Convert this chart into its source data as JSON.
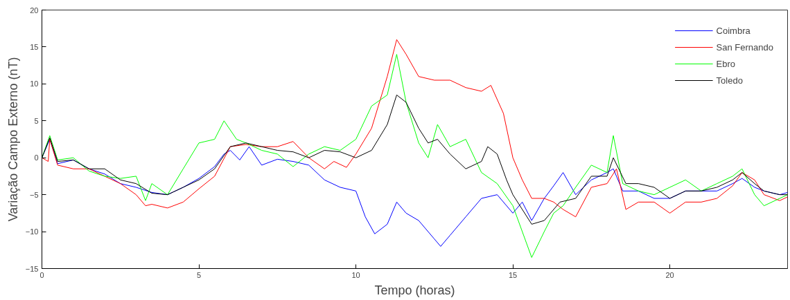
{
  "chart_data": {
    "type": "line",
    "xlabel": "Tempo (horas)",
    "ylabel": "Variação Campo Externo (nT)",
    "xlim": [
      0,
      23.75
    ],
    "ylim": [
      -15,
      20
    ],
    "xticks": [
      0,
      5,
      10,
      15,
      20
    ],
    "yticks": [
      -15,
      -10,
      -5,
      0,
      5,
      10,
      15,
      20
    ],
    "grid": false,
    "legend": "top right",
    "marker": "none",
    "line_style": "solid",
    "series": [
      {
        "name": "Coimbra",
        "color": "#0000ff",
        "x": [
          0,
          0.25,
          0.5,
          1,
          1.5,
          2,
          2.5,
          3,
          3.5,
          4,
          4.5,
          5,
          5.5,
          5.8,
          6,
          6.3,
          6.6,
          7,
          7.5,
          8,
          8.5,
          9,
          9.5,
          10,
          10.3,
          10.6,
          11,
          11.3,
          11.6,
          12,
          12.5,
          12.7,
          13,
          13.5,
          14,
          14.5,
          15,
          15.3,
          15.6,
          16,
          16.3,
          16.6,
          17,
          17.5,
          18,
          18.2,
          18.5,
          19,
          19.5,
          20,
          20.5,
          21,
          21.5,
          22,
          22.3,
          22.7,
          23,
          23.5,
          23.75
        ],
        "values": [
          0,
          2.5,
          -0.8,
          -0.3,
          -1.5,
          -2.2,
          -3.5,
          -4,
          -4.7,
          -5,
          -4,
          -2.8,
          -1.2,
          0.5,
          1,
          -0.3,
          1.5,
          -1,
          -0.2,
          -0.5,
          -1,
          -3,
          -4,
          -4.5,
          -8,
          -10.3,
          -9,
          -6,
          -7.5,
          -8.5,
          -11,
          -12,
          -10.5,
          -8,
          -5.5,
          -5,
          -7.5,
          -6,
          -8.5,
          -5.5,
          -3.8,
          -2,
          -5,
          -3,
          -2,
          -1.5,
          -4.5,
          -4.5,
          -5.5,
          -5.5,
          -4.5,
          -4.5,
          -4.5,
          -3.5,
          -2.8,
          -4,
          -4.5,
          -5,
          -4.7
        ]
      },
      {
        "name": "San Fernando",
        "color": "#ff0000",
        "x": [
          0,
          0.2,
          0.25,
          0.5,
          1,
          1.5,
          2,
          2.5,
          3,
          3.3,
          3.5,
          4,
          4.5,
          5,
          5.5,
          6,
          6.5,
          7,
          7.5,
          8,
          8.5,
          9,
          9.3,
          9.7,
          10,
          10.5,
          11,
          11.3,
          11.6,
          12,
          12.5,
          13,
          13.5,
          14,
          14.3,
          14.7,
          15,
          15.3,
          15.6,
          16,
          16.3,
          16.6,
          17,
          17.5,
          18,
          18.3,
          18.6,
          19,
          19.5,
          20,
          20.5,
          21,
          21.5,
          22,
          22.3,
          22.7,
          23,
          23.5,
          23.75
        ],
        "values": [
          0,
          -0.5,
          2.5,
          -1,
          -1.5,
          -1.5,
          -2.5,
          -3.5,
          -5,
          -6.5,
          -6.3,
          -6.8,
          -6,
          -4.2,
          -2.5,
          1.5,
          1.8,
          1.5,
          1.5,
          2.2,
          0,
          -1.5,
          -0.5,
          -1.3,
          0.5,
          4,
          11,
          16,
          14,
          11,
          10.5,
          10.5,
          9.5,
          9,
          9.8,
          6,
          0,
          -3,
          -5.5,
          -5.5,
          -6,
          -7,
          -8,
          -4,
          -3.5,
          -1.5,
          -7,
          -6,
          -6,
          -7.5,
          -6,
          -6,
          -5.5,
          -3.8,
          -2,
          -3,
          -5,
          -5.8,
          -5.3
        ]
      },
      {
        "name": "Ebro",
        "color": "#00ff00",
        "x": [
          0,
          0.25,
          0.5,
          1,
          1.5,
          2,
          2.5,
          3,
          3.3,
          3.5,
          4,
          4.5,
          5,
          5.5,
          5.8,
          6.2,
          6.5,
          7,
          7.5,
          8,
          8.5,
          9,
          9.5,
          10,
          10.5,
          11,
          11.3,
          11.6,
          12,
          12.3,
          12.6,
          13,
          13.5,
          14,
          14.5,
          15,
          15.3,
          15.6,
          16,
          16.3,
          16.6,
          17,
          17.5,
          18,
          18.2,
          18.5,
          19,
          19.5,
          20,
          20.5,
          21,
          21.5,
          22,
          22.3,
          22.7,
          23,
          23.5,
          23.75
        ],
        "values": [
          0,
          3,
          -0.3,
          0,
          -1.8,
          -2.5,
          -2.8,
          -2.5,
          -5.8,
          -3.5,
          -5,
          -1.5,
          2,
          2.5,
          5,
          2.5,
          2,
          1,
          0.5,
          -1.2,
          0.5,
          1.5,
          1,
          2.5,
          7,
          8.5,
          14,
          7.5,
          2,
          0,
          4.5,
          1.5,
          2.5,
          -2,
          -3.5,
          -6.5,
          -10,
          -13.5,
          -10,
          -7.5,
          -6.5,
          -4,
          -1,
          -2,
          3,
          -3.5,
          -4.5,
          -5,
          -4,
          -3,
          -4.5,
          -3.5,
          -2.5,
          -1.5,
          -5,
          -6.5,
          -5.5,
          -5
        ]
      },
      {
        "name": "Toledo",
        "color": "#000000",
        "x": [
          0,
          0.25,
          0.5,
          1,
          1.5,
          2,
          2.5,
          3,
          3.5,
          4,
          4.5,
          5,
          5.5,
          6,
          6.5,
          7,
          7.5,
          8,
          8.5,
          9,
          9.5,
          10,
          10.5,
          11,
          11.3,
          11.6,
          12,
          12.3,
          12.6,
          13,
          13.5,
          14,
          14.2,
          14.5,
          14.8,
          15,
          15.3,
          15.6,
          16,
          16.5,
          17,
          17.5,
          18,
          18.2,
          18.6,
          19,
          19.5,
          20,
          20.5,
          21,
          21.5,
          22,
          22.3,
          22.7,
          23,
          23.5,
          23.75
        ],
        "values": [
          0,
          2.7,
          -0.5,
          -0.3,
          -1.5,
          -1.5,
          -3,
          -3.5,
          -4.8,
          -5,
          -4,
          -3,
          -1.5,
          1.5,
          2,
          1.5,
          1,
          0.8,
          0,
          1,
          0.8,
          0,
          1,
          4.5,
          8.5,
          7.5,
          4,
          2,
          2.5,
          0.5,
          -1.5,
          -0.5,
          1.5,
          0.5,
          -3,
          -5,
          -7,
          -9,
          -8.5,
          -6,
          -5.5,
          -2.5,
          -2.5,
          0,
          -3.5,
          -3.5,
          -4,
          -5.5,
          -4.5,
          -4.5,
          -4,
          -3,
          -2,
          -3.5,
          -4.5,
          -5,
          -5
        ]
      }
    ]
  }
}
